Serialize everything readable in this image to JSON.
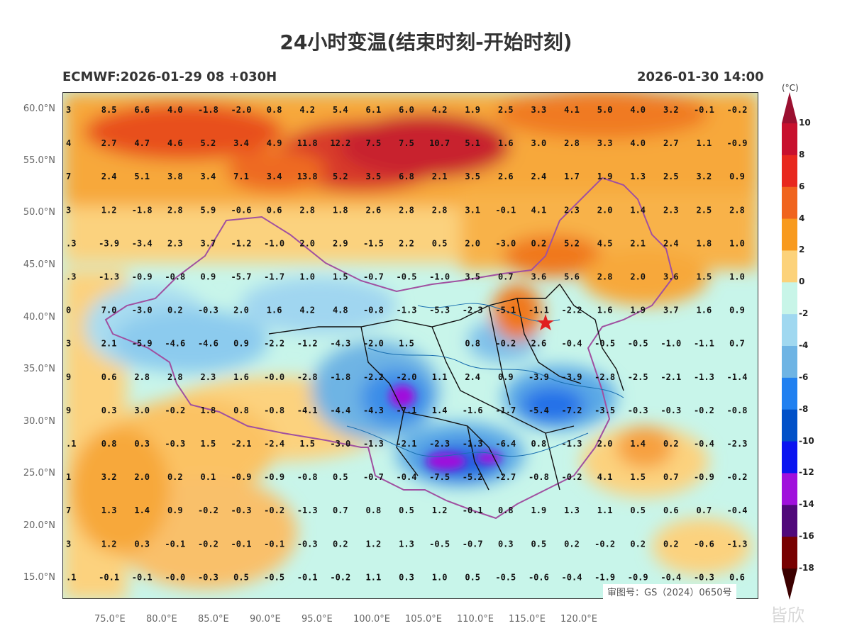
{
  "title": "24小时变温(结束时刻-开始时刻)",
  "model_run": "ECMWF:2026-01-29 08 +030H",
  "valid_time": "2026-01-30 14:00",
  "approval": "审图号：GS（2024）0650号",
  "watermark": "皆欣",
  "colorbar": {
    "unit": "(°C)",
    "labels": [
      "10",
      "8",
      "6",
      "4",
      "2",
      "0",
      "-2",
      "-4",
      "-6",
      "-8",
      "-10",
      "-12",
      "-14",
      "-16",
      "-18"
    ],
    "colors": [
      "#9b1030",
      "#c8102e",
      "#e8281e",
      "#f0641e",
      "#f89a1e",
      "#fcd27a",
      "#c8f5e8",
      "#a0d8f0",
      "#6eb4e4",
      "#2080f0",
      "#0050c8",
      "#0a14f0",
      "#a010dc",
      "#50087a",
      "#780000",
      "#3c0000"
    ]
  },
  "lat_labels": [
    "60.0°N",
    "55.0°N",
    "50.0°N",
    "45.0°N",
    "40.0°N",
    "35.0°N",
    "30.0°N",
    "25.0°N",
    "20.0°N",
    "15.0°N"
  ],
  "lon_labels": [
    "75.0°E",
    "80.0°E",
    "85.0°E",
    "90.0°E",
    "95.0°E",
    "100.0°E",
    "105.0°E",
    "110.0°E",
    "115.0°E",
    "120.0°E"
  ],
  "grid_values": [
    [
      "3",
      "8.5",
      "6.6",
      "4.0",
      "-1.8",
      "-2.0",
      "0.8",
      "4.2",
      "5.4",
      "6.1",
      "6.0",
      "4.2",
      "1.9",
      "2.5",
      "3.3",
      "4.1",
      "5.0",
      "4.0",
      "3.2",
      "-0.1",
      "-0.2"
    ],
    [
      "4",
      "2.7",
      "4.7",
      "4.6",
      "5.2",
      "3.4",
      "4.9",
      "11.8",
      "12.2",
      "7.5",
      "7.5",
      "10.7",
      "5.1",
      "1.6",
      "3.0",
      "2.8",
      "3.3",
      "4.0",
      "2.7",
      "1.1",
      "-0.9"
    ],
    [
      "7",
      "2.4",
      "5.1",
      "3.8",
      "3.4",
      "7.1",
      "3.4",
      "13.8",
      "5.2",
      "3.5",
      "6.8",
      "2.1",
      "3.5",
      "2.6",
      "2.4",
      "1.7",
      "1.9",
      "1.3",
      "2.5",
      "3.2",
      "0.9"
    ],
    [
      "3",
      "1.2",
      "-1.8",
      "2.8",
      "5.9",
      "-0.6",
      "0.6",
      "2.8",
      "1.8",
      "2.6",
      "2.8",
      "2.8",
      "3.1",
      "-0.1",
      "4.1",
      "2.3",
      "2.0",
      "1.4",
      "2.3",
      "2.5",
      "2.8"
    ],
    [
      ".3",
      "-3.9",
      "-3.4",
      "2.3",
      "3.7",
      "-1.2",
      "-1.0",
      "2.0",
      "2.9",
      "-1.5",
      "2.2",
      "0.5",
      "2.0",
      "-3.0",
      "0.2",
      "5.2",
      "4.5",
      "2.1",
      "2.4",
      "1.8",
      "1.0"
    ],
    [
      ".3",
      "-1.3",
      "-0.9",
      "-0.8",
      "0.9",
      "-5.7",
      "-1.7",
      "1.0",
      "1.5",
      "-0.7",
      "-0.5",
      "-1.0",
      "3.5",
      "0.7",
      "3.6",
      "5.6",
      "2.8",
      "2.0",
      "3.6",
      "1.5",
      "1.0"
    ],
    [
      "0",
      "7.0",
      "-3.0",
      "0.2",
      "-0.3",
      "2.0",
      "1.6",
      "4.2",
      "4.8",
      "-0.8",
      "-1.3",
      "-5.3",
      "-2.3",
      "-5.1",
      "-1.1",
      "-2.2",
      "1.6",
      "1.9",
      "3.7",
      "1.6",
      "0.9"
    ],
    [
      "3",
      "2.1",
      "-5.9",
      "-4.6",
      "-4.6",
      "0.9",
      "-2.2",
      "-1.2",
      "-4.3",
      "-2.0",
      "1.5",
      "",
      "0.8",
      "-0.2",
      "2.6",
      "-0.4",
      "-0.5",
      "-0.5",
      "-1.0",
      "-1.1",
      "0.7"
    ],
    [
      "9",
      "0.6",
      "2.8",
      "2.8",
      "2.3",
      "1.6",
      "-0.0",
      "-2.8",
      "-1.8",
      "-2.2",
      "-2.0",
      "1.1",
      "2.4",
      "0.9",
      "-3.9",
      "-3.9",
      "-2.8",
      "-2.5",
      "-2.1",
      "-1.3",
      "-1.4"
    ],
    [
      "9",
      "0.3",
      "3.0",
      "-0.2",
      "1.8",
      "0.8",
      "-0.8",
      "-4.1",
      "-4.4",
      "-4.3",
      "-7.1",
      "1.4",
      "-1.6",
      "-1.7",
      "-5.4",
      "-7.2",
      "-3.5",
      "-0.3",
      "-0.3",
      "-0.2",
      "-0.8"
    ],
    [
      ".1",
      "0.8",
      "0.3",
      "-0.3",
      "1.5",
      "-2.1",
      "-2.4",
      "1.5",
      "-3.0",
      "-1.3",
      "-2.1",
      "-2.3",
      "-1.3",
      "-6.4",
      "0.8",
      "-1.3",
      "2.0",
      "1.4",
      "0.2",
      "-0.4",
      "-2.3"
    ],
    [
      "1",
      "3.2",
      "2.0",
      "0.2",
      "0.1",
      "-0.9",
      "-0.9",
      "-0.8",
      "0.5",
      "-0.7",
      "-0.4",
      "-7.5",
      "-5.2",
      "-2.7",
      "-0.8",
      "-0.2",
      "4.1",
      "1.5",
      "0.7",
      "-0.9",
      "-0.2"
    ],
    [
      "7",
      "1.3",
      "1.4",
      "0.9",
      "-0.2",
      "-0.3",
      "-0.2",
      "-1.3",
      "0.7",
      "0.8",
      "0.5",
      "1.2",
      "-0.1",
      "0.8",
      "1.9",
      "1.3",
      "1.1",
      "0.5",
      "0.6",
      "0.7",
      "-0.4"
    ],
    [
      "3",
      "1.2",
      "0.3",
      "-0.1",
      "-0.2",
      "-0.1",
      "-0.1",
      "-0.3",
      "0.2",
      "1.2",
      "1.3",
      "-0.5",
      "-0.7",
      "0.3",
      "0.5",
      "0.2",
      "-0.2",
      "0.2",
      "0.2",
      "-0.6",
      "-1.3"
    ],
    [
      ".1",
      "-0.1",
      "-0.1",
      "-0.0",
      "-0.3",
      "0.5",
      "-0.5",
      "-0.1",
      "-0.2",
      "1.1",
      "0.3",
      "1.0",
      "0.5",
      "-0.5",
      "-0.6",
      "-0.4",
      "-1.9",
      "-0.9",
      "-0.4",
      "-0.3",
      "0.6"
    ]
  ]
}
